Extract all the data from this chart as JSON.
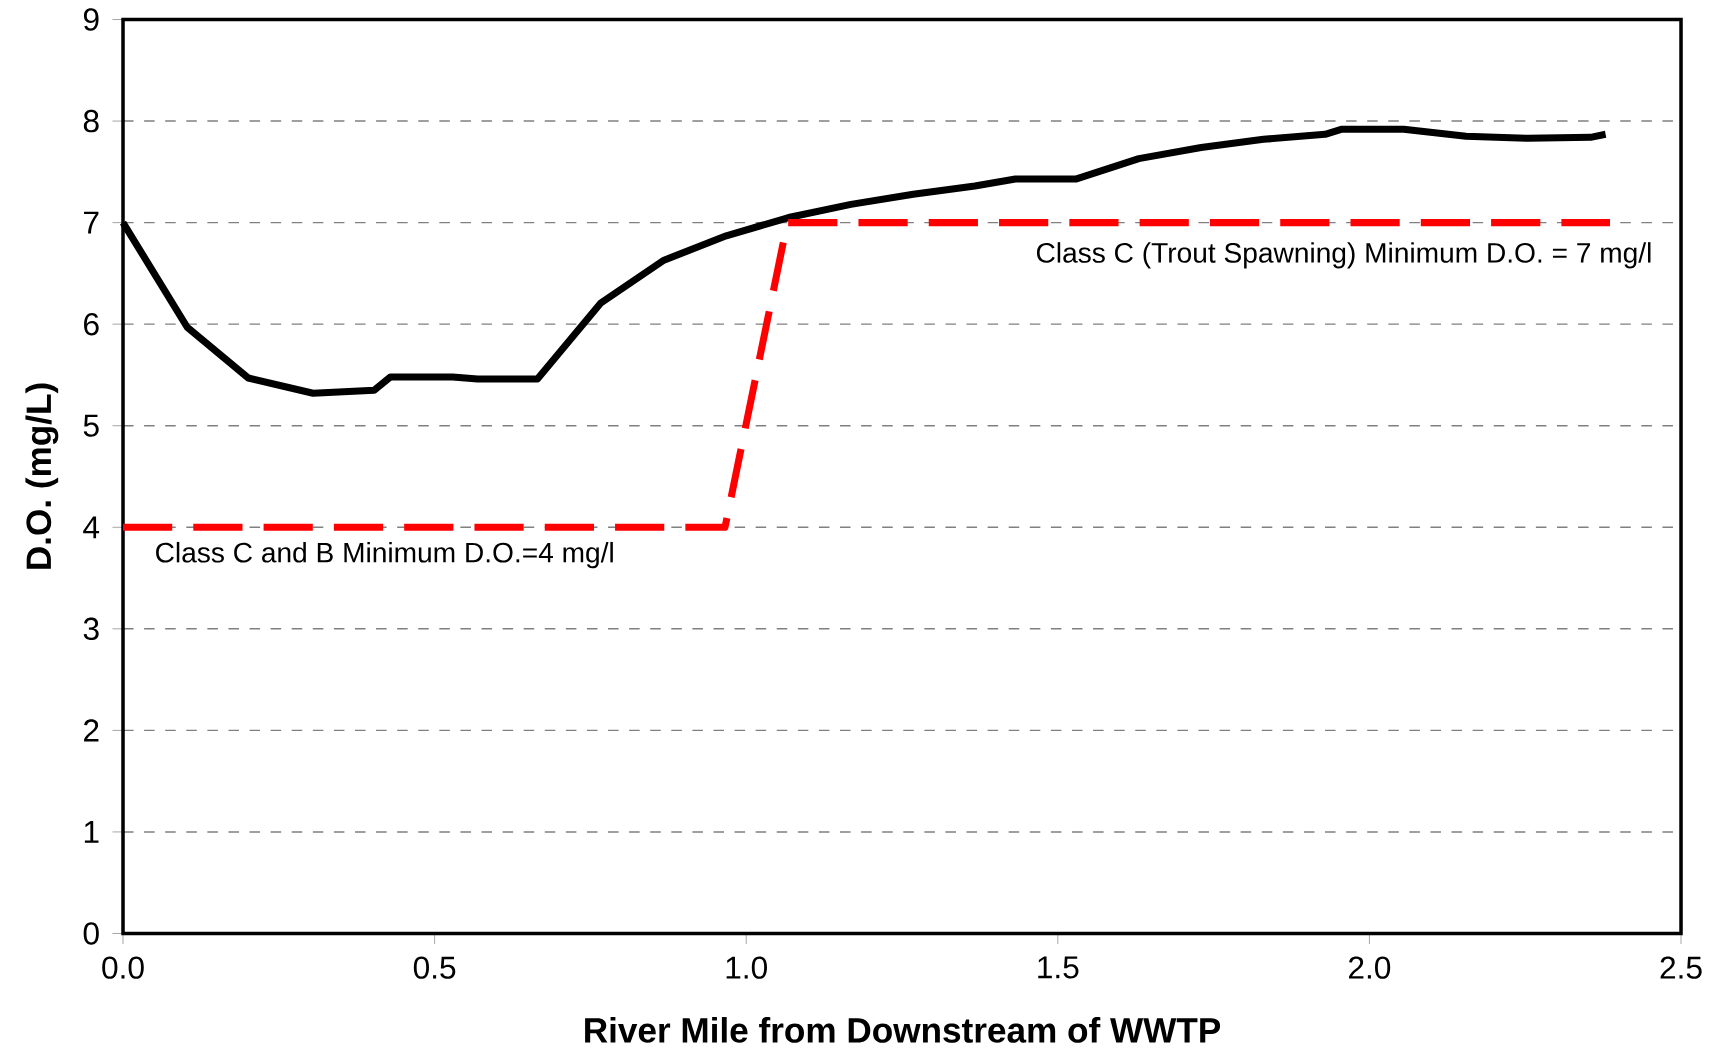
{
  "chart_data": {
    "type": "line",
    "xlabel": "River Mile from Downstream of WWTP",
    "ylabel": "D.O. (mg/L)",
    "series": [
      {
        "color": "#000000",
        "line_style": "solid",
        "x": [
          0.0,
          0.103,
          0.201,
          0.305,
          0.403,
          0.429,
          0.529,
          0.569,
          0.665,
          0.767,
          0.868,
          0.968,
          1.068,
          1.168,
          1.268,
          1.367,
          1.432,
          1.53,
          1.63,
          1.73,
          1.83,
          1.929,
          1.956,
          2.055,
          2.155,
          2.255,
          2.355,
          2.379
        ],
        "values": [
          7.0,
          5.97,
          5.47,
          5.32,
          5.35,
          5.48,
          5.48,
          5.46,
          5.46,
          6.21,
          6.63,
          6.87,
          7.05,
          7.18,
          7.28,
          7.36,
          7.43,
          7.43,
          7.63,
          7.74,
          7.82,
          7.87,
          7.92,
          7.92,
          7.85,
          7.83,
          7.84,
          7.87
        ]
      },
      {
        "color": "#ff0000",
        "line_style": "dashed",
        "x": [
          0.0,
          0.966,
          1.066,
          2.386
        ],
        "values": [
          4.0,
          4.0,
          7.0,
          7.0
        ]
      }
    ],
    "xlim": [
      0,
      2.5
    ],
    "xticks": [
      {
        "value": 0,
        "label": "0.0"
      },
      {
        "value": 0.5,
        "label": "0.5"
      },
      {
        "value": 1,
        "label": "1.0"
      },
      {
        "value": 1.5,
        "label": "1.5"
      },
      {
        "value": 2,
        "label": "2.0"
      },
      {
        "value": 2.5,
        "label": "2.5"
      }
    ],
    "ylim": [
      0,
      9
    ],
    "yticks": [
      0,
      1,
      2,
      3,
      4,
      5,
      6,
      7,
      8,
      9
    ],
    "grid": "y",
    "marker": "none",
    "annotations": [
      "Class C and B Minimum D.O.=4 mg/l",
      "Class C (Trout Spawning) Minimum D.O. = 7 mg/l"
    ]
  }
}
